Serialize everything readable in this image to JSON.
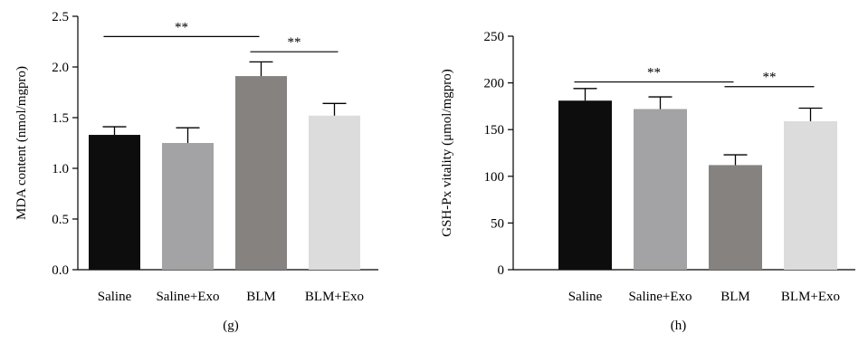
{
  "chart_data": [
    {
      "type": "bar",
      "panel_label": "(g)",
      "categories": [
        "Saline",
        "Saline+Exo",
        "BLM",
        "BLM+Exo"
      ],
      "values": [
        1.33,
        1.25,
        1.91,
        1.52
      ],
      "errors": [
        0.08,
        0.15,
        0.14,
        0.12
      ],
      "bar_colors": [
        "#0d0d0d",
        "#a3a3a5",
        "#858280",
        "#dcdcdc"
      ],
      "ylabel": "MDA content (nmol/mgpro)",
      "xlabel": "",
      "ylim": [
        0,
        2.5
      ],
      "yticks": [
        "0.0",
        "0.5",
        "1.0",
        "1.5",
        "2.0",
        "2.5"
      ],
      "significance": [
        {
          "from": 0,
          "to": 2,
          "label": "**",
          "y": 2.3
        },
        {
          "from": 2,
          "to": 3,
          "label": "**",
          "y": 2.15
        }
      ]
    },
    {
      "type": "bar",
      "panel_label": "(h)",
      "categories": [
        "Saline",
        "Saline+Exo",
        "BLM",
        "BLM+Exo"
      ],
      "values": [
        181,
        172,
        112,
        159
      ],
      "errors": [
        13,
        13,
        11,
        14
      ],
      "bar_colors": [
        "#0d0d0d",
        "#a3a3a5",
        "#858280",
        "#dcdcdc"
      ],
      "ylabel": "GSH-Px vitality (μmol/mgpro)",
      "xlabel": "",
      "ylim": [
        0,
        250
      ],
      "yticks": [
        "0",
        "50",
        "100",
        "150",
        "200",
        "250"
      ],
      "significance": [
        {
          "from": 0,
          "to": 2,
          "label": "**",
          "y": 201
        },
        {
          "from": 2,
          "to": 3,
          "label": "**",
          "y": 196
        }
      ]
    }
  ]
}
